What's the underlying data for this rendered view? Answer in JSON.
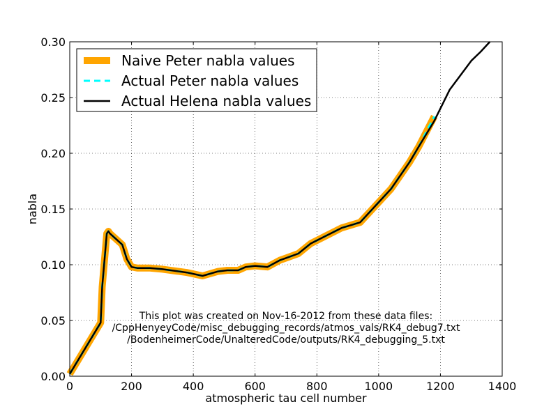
{
  "chart_data": {
    "type": "line",
    "title": "",
    "xlabel": "atmospheric tau cell number",
    "ylabel": "nabla",
    "xlim": [
      0,
      1400
    ],
    "ylim": [
      0.0,
      0.3
    ],
    "x_ticks": [
      0,
      200,
      400,
      600,
      800,
      1000,
      1200,
      1400
    ],
    "x_tick_labels": [
      "0",
      "200",
      "400",
      "600",
      "800",
      "1000",
      "1200",
      "1400"
    ],
    "y_ticks": [
      0.0,
      0.05,
      0.1,
      0.15,
      0.2,
      0.25,
      0.3
    ],
    "y_tick_labels": [
      "0.00",
      "0.05",
      "0.10",
      "0.15",
      "0.20",
      "0.25",
      "0.30"
    ],
    "grid": true,
    "legend_position": "top-left",
    "series": [
      {
        "name": "Naive Peter nabla values",
        "color": "#ffa500",
        "style": "solid-thick",
        "x": [
          0,
          100,
          105,
          120,
          125,
          130,
          170,
          185,
          200,
          220,
          260,
          300,
          380,
          430,
          480,
          510,
          545,
          570,
          600,
          640,
          680,
          700,
          740,
          780,
          830,
          880,
          940,
          1000,
          1040,
          1100,
          1130,
          1180
        ],
        "y": [
          0.002,
          0.048,
          0.08,
          0.128,
          0.13,
          0.128,
          0.118,
          0.105,
          0.098,
          0.097,
          0.097,
          0.096,
          0.093,
          0.09,
          0.094,
          0.095,
          0.095,
          0.098,
          0.099,
          0.098,
          0.104,
          0.106,
          0.11,
          0.119,
          0.126,
          0.133,
          0.138,
          0.156,
          0.168,
          0.192,
          0.206,
          0.233
        ]
      },
      {
        "name": "Actual Peter nabla values",
        "color": "#00ffff",
        "style": "dashed",
        "x": [
          0,
          100,
          105,
          120,
          125,
          130,
          170,
          185,
          200,
          220,
          260,
          300,
          380,
          430,
          480,
          510,
          545,
          570,
          600,
          640,
          680,
          700,
          740,
          780,
          830,
          880,
          940,
          1000,
          1040,
          1100,
          1130,
          1180
        ],
        "y": [
          0.002,
          0.048,
          0.08,
          0.128,
          0.13,
          0.128,
          0.118,
          0.105,
          0.098,
          0.097,
          0.097,
          0.096,
          0.093,
          0.09,
          0.094,
          0.095,
          0.095,
          0.098,
          0.099,
          0.098,
          0.104,
          0.106,
          0.11,
          0.119,
          0.126,
          0.133,
          0.138,
          0.156,
          0.168,
          0.192,
          0.206,
          0.233
        ]
      },
      {
        "name": "Actual Helena nabla values",
        "color": "#000000",
        "style": "solid",
        "x": [
          0,
          100,
          105,
          120,
          125,
          130,
          170,
          185,
          200,
          220,
          260,
          300,
          380,
          430,
          480,
          510,
          545,
          570,
          600,
          640,
          680,
          700,
          740,
          780,
          830,
          880,
          940,
          1000,
          1040,
          1100,
          1130,
          1180,
          1230,
          1300,
          1330,
          1360
        ],
        "y": [
          0.002,
          0.048,
          0.08,
          0.128,
          0.13,
          0.128,
          0.118,
          0.105,
          0.098,
          0.097,
          0.097,
          0.096,
          0.093,
          0.09,
          0.094,
          0.095,
          0.095,
          0.098,
          0.099,
          0.098,
          0.104,
          0.106,
          0.11,
          0.119,
          0.126,
          0.133,
          0.138,
          0.156,
          0.168,
          0.192,
          0.206,
          0.229,
          0.257,
          0.283,
          0.291,
          0.3
        ]
      }
    ],
    "annotation": [
      "This plot was created on Nov-16-2012 from these data files:",
      "/CppHenyeyCode/misc_debugging_records/atmos_vals/RK4_debug7.txt",
      "/BodenheimerCode/UnalteredCode/outputs/RK4_debugging_5.txt"
    ]
  }
}
